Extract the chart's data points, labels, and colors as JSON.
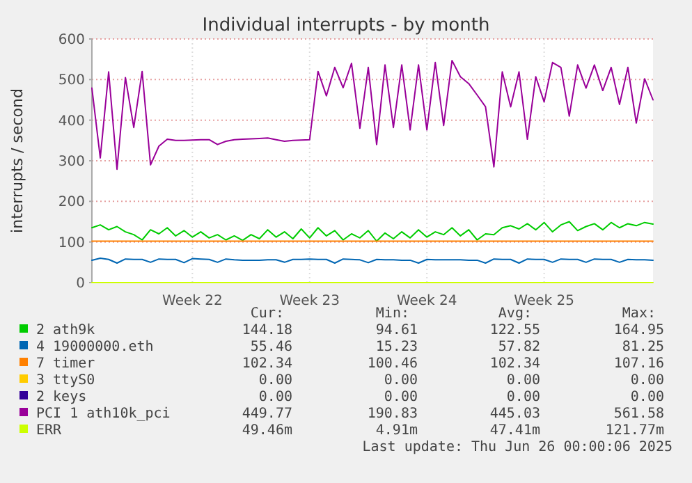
{
  "chart_data": {
    "type": "line",
    "title": "Individual interrupts - by month",
    "ylabel": "interrupts / second",
    "categories": [
      null,
      null,
      null,
      null,
      null,
      null,
      null,
      null,
      null,
      null,
      null,
      null,
      "Week 22",
      null,
      null,
      null,
      null,
      null,
      null,
      null,
      null,
      null,
      null,
      null,
      null,
      null,
      "Week 23",
      null,
      null,
      null,
      null,
      null,
      null,
      null,
      null,
      null,
      null,
      null,
      null,
      null,
      "Week 24",
      null,
      null,
      null,
      null,
      null,
      null,
      null,
      null,
      null,
      null,
      null,
      null,
      null,
      "Week 25",
      null,
      null,
      null,
      null,
      null,
      null,
      null,
      null,
      null,
      null,
      null,
      null,
      null
    ],
    "ylim": [
      0,
      600
    ],
    "yticks": [
      0,
      100,
      200,
      300,
      400,
      500,
      600
    ],
    "grid": true,
    "legend": "bottom",
    "marker": "none",
    "line_style": "solid",
    "series": [
      {
        "name": "2 ath9k",
        "color": "#00cc00",
        "values": [
          135,
          142,
          130,
          138,
          125,
          118,
          105,
          130,
          120,
          135,
          115,
          128,
          112,
          125,
          110,
          118,
          105,
          115,
          104,
          118,
          108,
          130,
          112,
          125,
          108,
          132,
          110,
          135,
          115,
          128,
          105,
          120,
          110,
          128,
          102,
          122,
          108,
          125,
          110,
          130,
          112,
          125,
          118,
          135,
          115,
          130,
          105,
          120,
          118,
          135,
          140,
          132,
          145,
          130,
          148,
          125,
          142,
          150,
          128,
          138,
          145,
          130,
          148,
          135,
          145,
          140,
          148,
          144
        ]
      },
      {
        "name": "4 19000000.eth",
        "color": "#0066b3",
        "values": [
          55,
          60,
          57,
          48,
          58,
          57,
          57,
          50,
          58,
          57,
          57,
          49,
          59,
          58,
          57,
          50,
          58,
          56,
          55,
          55,
          55,
          56,
          56,
          50,
          57,
          57,
          58,
          57,
          57,
          48,
          58,
          57,
          56,
          49,
          57,
          56,
          56,
          55,
          55,
          48,
          57,
          56,
          56,
          56,
          56,
          55,
          55,
          48,
          58,
          57,
          57,
          48,
          58,
          57,
          57,
          50,
          58,
          57,
          57,
          50,
          58,
          57,
          57,
          50,
          57,
          56,
          56,
          55
        ]
      },
      {
        "name": "7 timer",
        "color": "#ff8000",
        "values": [
          102,
          102,
          102,
          102,
          102,
          102,
          102,
          102,
          102,
          102,
          102,
          102,
          102,
          102,
          102,
          102,
          102,
          102,
          102,
          102,
          102,
          102,
          102,
          102,
          102,
          102,
          102,
          102,
          102,
          102,
          102,
          102,
          102,
          102,
          102,
          102,
          102,
          102,
          102,
          102,
          102,
          102,
          102,
          102,
          102,
          102,
          102,
          102,
          102,
          102,
          102,
          102,
          102,
          102,
          102,
          102,
          102,
          102,
          102,
          102,
          102,
          102,
          102,
          102,
          102,
          102,
          102,
          102
        ]
      },
      {
        "name": "3 ttyS0",
        "color": "#ffcc00",
        "values": [
          null,
          null,
          null,
          null,
          null,
          null,
          null,
          null,
          null,
          null,
          null,
          null,
          null,
          null,
          null,
          null,
          null,
          null,
          null,
          null,
          null,
          null,
          null,
          null,
          null,
          null,
          null,
          null,
          null,
          null,
          null,
          null,
          null,
          null,
          null,
          null,
          null,
          null,
          null,
          null,
          null,
          null,
          null,
          null,
          null,
          null,
          null,
          null,
          null,
          null,
          null,
          null,
          null,
          null,
          null,
          null,
          null,
          null,
          null,
          null,
          null,
          null,
          null,
          null,
          null,
          null,
          null,
          null
        ]
      },
      {
        "name": "2 keys",
        "color": "#330099",
        "values": [
          null,
          null,
          null,
          null,
          null,
          null,
          null,
          null,
          null,
          null,
          null,
          null,
          null,
          null,
          null,
          null,
          null,
          null,
          null,
          null,
          null,
          null,
          null,
          null,
          null,
          null,
          null,
          null,
          null,
          null,
          null,
          null,
          null,
          null,
          null,
          null,
          null,
          null,
          null,
          null,
          null,
          null,
          null,
          null,
          null,
          null,
          null,
          null,
          null,
          null,
          null,
          null,
          null,
          null,
          null,
          null,
          null,
          null,
          null,
          null,
          null,
          null,
          null,
          null,
          null,
          null,
          null,
          null
        ]
      },
      {
        "name": "PCI 1 ath10k_pci",
        "color": "#990099",
        "values": [
          479,
          307,
          519,
          279,
          505,
          382,
          520,
          290,
          336,
          353,
          350,
          350,
          351,
          352,
          352,
          340,
          348,
          352,
          353,
          354,
          355,
          356,
          352,
          348,
          350,
          351,
          352,
          520,
          460,
          530,
          480,
          540,
          380,
          530,
          340,
          536,
          382,
          536,
          376,
          536,
          376,
          542,
          387,
          547,
          507,
          490,
          462,
          433,
          285,
          519,
          433,
          519,
          353,
          507,
          445,
          542,
          530,
          410,
          536,
          479,
          536,
          473,
          530,
          439,
          530,
          393,
          502,
          450
        ]
      },
      {
        "name": "ERR",
        "color": "#ccff00",
        "values": [
          0,
          0,
          0,
          0,
          0,
          0,
          0,
          0,
          0,
          0,
          0,
          0,
          0,
          0,
          0,
          0,
          0,
          0,
          0,
          0,
          0,
          0,
          0,
          0,
          0,
          0,
          0,
          0,
          0,
          0,
          0,
          0,
          0,
          0,
          0,
          0,
          0,
          0,
          0,
          0,
          0,
          0,
          0,
          0,
          0,
          0,
          0,
          0,
          0,
          0,
          0,
          0,
          0,
          0,
          0,
          0,
          0,
          0,
          0,
          0,
          0,
          0,
          0,
          0,
          0,
          0,
          0,
          0
        ]
      }
    ],
    "annotations": [
      "Cur:",
      "Min:",
      "Avg:",
      "Max:",
      "144.18",
      "94.61",
      "122.55",
      "164.95",
      "55.46",
      "15.23",
      "57.82",
      "81.25",
      "102.34",
      "100.46",
      "102.34",
      "107.16",
      "0.00",
      "0.00",
      "0.00",
      "0.00",
      "0.00",
      "0.00",
      "0.00",
      "0.00",
      "449.77",
      "190.83",
      "445.03",
      "561.58",
      "49.46m",
      "4.91m",
      "47.41m",
      "121.77m",
      "Last update: Thu Jun 26 00:00:06 2025"
    ]
  }
}
